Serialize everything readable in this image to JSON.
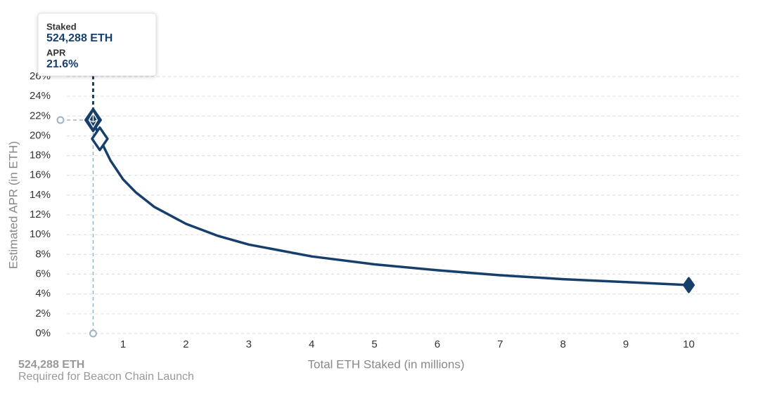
{
  "chart_data": {
    "type": "line",
    "x_label": "Total ETH Staked  (in millions)",
    "y_label": "Estimated APR (in ETH)",
    "x": [
      0.524288,
      0.63,
      0.8,
      1,
      1.2,
      1.5,
      2,
      2.5,
      3,
      4,
      5,
      6,
      7,
      8,
      9,
      10
    ],
    "series": [
      {
        "color": "#173f6b",
        "values": [
          21.6,
          19.7,
          17.5,
          15.6,
          14.3,
          12.8,
          11.1,
          9.9,
          9.0,
          7.8,
          7.0,
          6.4,
          5.9,
          5.5,
          5.2,
          4.9
        ]
      }
    ],
    "xlim": [
      0,
      10.8
    ],
    "ylim": [
      0,
      26
    ],
    "xticks": [
      1,
      2,
      3,
      4,
      5,
      6,
      7,
      8,
      9,
      10
    ],
    "yticks": [
      {
        "value": 0,
        "label": "0%"
      },
      {
        "value": 2,
        "label": "2%"
      },
      {
        "value": 4,
        "label": "4%"
      },
      {
        "value": 6,
        "label": "6%"
      },
      {
        "value": 8,
        "label": "8%"
      },
      {
        "value": 10,
        "label": "10%"
      },
      {
        "value": 12,
        "label": "12%"
      },
      {
        "value": 14,
        "label": "14%"
      },
      {
        "value": 16,
        "label": "16%"
      },
      {
        "value": 18,
        "label": "18%"
      },
      {
        "value": 20,
        "label": "20%"
      },
      {
        "value": 22,
        "label": "22%"
      },
      {
        "value": 24,
        "label": "24%"
      },
      {
        "value": 26,
        "label": "26%"
      }
    ],
    "grid": true,
    "tooltip": {
      "x_title": "Staked",
      "x_value": "524,288 ETH",
      "y_title": "APR",
      "y_value": "21.6%"
    },
    "annotation": {
      "value": "524,288 ETH",
      "label": "Required for Beacon Chain Launch"
    }
  }
}
